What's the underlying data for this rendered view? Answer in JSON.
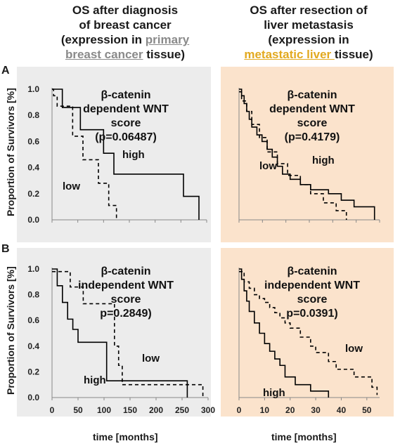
{
  "titles": {
    "left": {
      "l1": "OS after diagnosis",
      "l2": "of breast cancer",
      "l3": "(expression in ",
      "l3u": "primary",
      "l4u": "breast cancer",
      "l4": " tissue)"
    },
    "right": {
      "l1": "OS after resection of",
      "l2": "liver metastasis",
      "l3": "(expression in",
      "l4u": "metastatic liver ",
      "l4": "tissue)"
    }
  },
  "row_labels": {
    "a": "A",
    "b": "B"
  },
  "y_axis_label": "Proportion of Survivors [%]",
  "x_axis_label": "time [months]",
  "colors": {
    "left_panel_bg": "#ececec",
    "right_panel_bg": "#fbe3cc",
    "line": "#000000",
    "axis": "#888888"
  },
  "chart_data": [
    {
      "id": "A-left",
      "type": "line",
      "step": true,
      "xlim": [
        0,
        300
      ],
      "ylim": [
        0,
        1.0
      ],
      "xticks": [],
      "yticks": [
        "0.0",
        "0.2",
        "0.4",
        "0.6",
        "0.8",
        "1.0"
      ],
      "annotation": [
        "β-catenin",
        "dependent WNT",
        "score",
        "(p=0.06487)"
      ],
      "series": [
        {
          "name": "high",
          "style": "solid",
          "x": [
            0,
            20,
            55,
            100,
            120,
            255,
            285,
            285
          ],
          "y": [
            1.0,
            0.86,
            0.69,
            0.51,
            0.35,
            0.18,
            0.0,
            0.0
          ]
        },
        {
          "name": "low",
          "style": "dashed",
          "x": [
            0,
            3,
            10,
            40,
            60,
            90,
            110,
            125
          ],
          "y": [
            1.0,
            0.95,
            0.87,
            0.64,
            0.46,
            0.28,
            0.11,
            0.0
          ]
        }
      ]
    },
    {
      "id": "A-right",
      "type": "line",
      "step": true,
      "xlim": [
        0,
        55
      ],
      "ylim": [
        0,
        1.0
      ],
      "xticks": [],
      "yticks": [],
      "annotation": [
        "β-catenin",
        "dependent WNT",
        "score",
        "(p=0.4179)"
      ],
      "series": [
        {
          "name": "high",
          "style": "solid",
          "x": [
            0,
            1,
            2,
            3,
            4,
            5,
            7,
            9,
            11,
            13,
            15,
            17,
            20,
            24,
            28,
            35,
            40,
            45,
            53,
            53
          ],
          "y": [
            1.0,
            0.95,
            0.89,
            0.83,
            0.77,
            0.71,
            0.65,
            0.6,
            0.54,
            0.48,
            0.41,
            0.35,
            0.31,
            0.27,
            0.23,
            0.2,
            0.15,
            0.1,
            0.0,
            0.0
          ]
        },
        {
          "name": "low",
          "style": "dashed",
          "x": [
            0,
            1,
            3,
            5,
            8,
            11,
            15,
            19,
            24,
            28,
            33,
            38,
            42
          ],
          "y": [
            0.98,
            0.91,
            0.83,
            0.73,
            0.63,
            0.52,
            0.43,
            0.34,
            0.27,
            0.2,
            0.13,
            0.07,
            0.0
          ]
        }
      ]
    },
    {
      "id": "B-left",
      "type": "line",
      "step": true,
      "xlim": [
        0,
        300
      ],
      "ylim": [
        0,
        1.0
      ],
      "xticks": [
        "0",
        "50",
        "100",
        "150",
        "200",
        "250",
        "300"
      ],
      "yticks": [
        "0.0",
        "0.2",
        "0.4",
        "0.6",
        "0.8",
        "1.0"
      ],
      "annotation": [
        "β-catenin",
        "independent  WNT",
        "score",
        "p=0.2849)"
      ],
      "series": [
        {
          "name": "high",
          "style": "solid",
          "x": [
            0,
            10,
            20,
            30,
            40,
            50,
            60,
            100,
            105,
            260,
            260
          ],
          "y": [
            1.0,
            0.87,
            0.74,
            0.61,
            0.53,
            0.43,
            0.43,
            0.43,
            0.13,
            0.13,
            0.0
          ]
        },
        {
          "name": "low",
          "style": "dashed",
          "x": [
            0,
            30,
            35,
            55,
            60,
            120,
            128,
            135,
            290,
            290
          ],
          "y": [
            0.98,
            0.98,
            0.86,
            0.86,
            0.73,
            0.4,
            0.25,
            0.1,
            0.1,
            0.0
          ]
        }
      ]
    },
    {
      "id": "B-right",
      "type": "line",
      "step": true,
      "xlim": [
        0,
        55
      ],
      "ylim": [
        0,
        1.0
      ],
      "xticks": [
        "0",
        "10",
        "20",
        "30",
        "40",
        "50"
      ],
      "yticks": [],
      "annotation": [
        "β-catenin",
        "independent  WNT",
        "score",
        "p=0.0391)"
      ],
      "series": [
        {
          "name": "high",
          "style": "solid",
          "x": [
            0,
            1,
            2,
            3,
            4,
            6,
            8,
            10,
            12,
            14,
            16,
            18,
            22,
            26,
            28,
            35,
            35
          ],
          "y": [
            1.0,
            0.92,
            0.83,
            0.75,
            0.67,
            0.58,
            0.5,
            0.42,
            0.36,
            0.3,
            0.25,
            0.16,
            0.1,
            0.1,
            0.05,
            0.05,
            0.0
          ]
        },
        {
          "name": "low",
          "style": "dashed",
          "x": [
            0,
            2,
            4,
            6,
            8,
            10,
            12,
            14,
            16,
            18,
            20,
            24,
            28,
            30,
            35,
            38,
            45,
            52,
            54
          ],
          "y": [
            0.98,
            0.9,
            0.85,
            0.8,
            0.77,
            0.74,
            0.7,
            0.66,
            0.62,
            0.58,
            0.54,
            0.47,
            0.4,
            0.35,
            0.28,
            0.22,
            0.16,
            0.08,
            0.02
          ]
        }
      ]
    }
  ]
}
